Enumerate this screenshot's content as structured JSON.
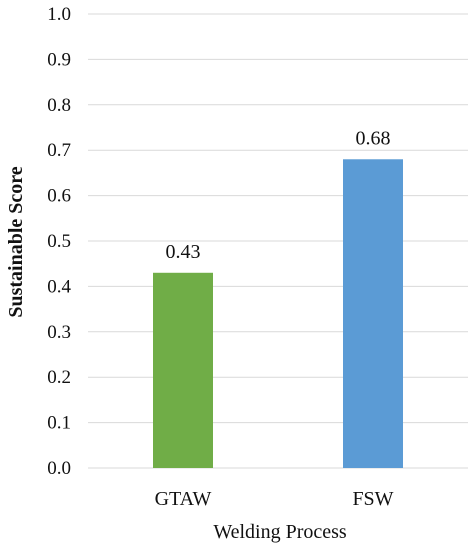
{
  "chart_data": {
    "type": "bar",
    "title": "",
    "xlabel": "Welding Process",
    "ylabel": "Sustainable Score",
    "categories": [
      "GTAW",
      "FSW"
    ],
    "values": [
      0.43,
      0.68
    ],
    "data_labels": [
      "0.43",
      "0.68"
    ],
    "bar_colors": [
      "#70ad47",
      "#5b9bd5"
    ],
    "ylim": [
      0,
      1.0
    ],
    "yticks": [
      "0.0",
      "0.1",
      "0.2",
      "0.3",
      "0.4",
      "0.5",
      "0.6",
      "0.7",
      "0.8",
      "0.9",
      "1.0"
    ],
    "grid": true,
    "legend": "none"
  }
}
